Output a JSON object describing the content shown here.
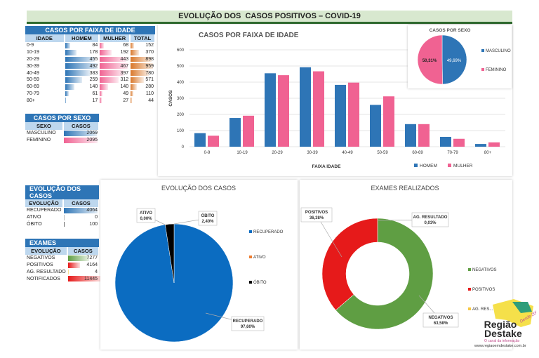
{
  "title": "EVOLUÇÃO DOS  CASOS POSITIVOS – COVID-19",
  "colors": {
    "homem": "#2e75b6",
    "mulher": "#f06292",
    "total": "#d9782b",
    "header": "#2e75b6",
    "subheader": "#bdd7ee",
    "recuperado": "#0b6cc1",
    "ativo": "#ed7d31",
    "obito": "#000000",
    "negativos": "#5f9e43",
    "positivos": "#e61a1a",
    "ag_resultado": "#f7c843",
    "notificados": "#e61a1a"
  },
  "faixa_table": {
    "title": "CASOS POR FAIXA DE IDADE",
    "headers": [
      "IDADE",
      "HOMEM",
      "MULHER",
      "TOTAL"
    ],
    "rows": [
      [
        "0-9",
        84,
        68,
        152
      ],
      [
        "10-19",
        178,
        192,
        370
      ],
      [
        "20-29",
        455,
        443,
        898
      ],
      [
        "30-39",
        492,
        467,
        959
      ],
      [
        "40-49",
        383,
        397,
        780
      ],
      [
        "50-59",
        259,
        312,
        571
      ],
      [
        "60-69",
        140,
        140,
        280
      ],
      [
        "70-79",
        61,
        49,
        110
      ],
      [
        "80+",
        17,
        27,
        44
      ]
    ]
  },
  "sexo_table": {
    "title": "CASOS POR SEXO",
    "headers": [
      "SEXO",
      "CASOS"
    ],
    "rows": [
      [
        "MASCULINO",
        2069
      ],
      [
        "FEMININO",
        2095
      ]
    ]
  },
  "evolucao_table": {
    "title": "EVOLUÇÃO DOS CASOS",
    "headers": [
      "EVOLUÇÃO",
      "CASOS"
    ],
    "rows": [
      [
        "RECUPERADO",
        4064
      ],
      [
        "ATIVO",
        0
      ],
      [
        "ÓBITO",
        100
      ]
    ]
  },
  "exames_table": {
    "title": "EXAMES",
    "headers": [
      "EVOLUÇÃO",
      "CASOS"
    ],
    "rows": [
      [
        "NEGATIVOS",
        7277
      ],
      [
        "POSITIVOS",
        4164
      ],
      [
        "AG. RESULTADO",
        4
      ],
      [
        "NOTIFICADOS",
        11445
      ]
    ]
  },
  "chart_data": [
    {
      "type": "bar",
      "title": "CASOS POR FAIXA DE IDADE",
      "xlabel": "FAIXA IDADE",
      "ylabel": "CASOS",
      "ylim": [
        0,
        600
      ],
      "yticks": [
        0,
        100,
        200,
        300,
        400,
        500,
        600
      ],
      "grid": true,
      "legend": "bottom-right",
      "categories": [
        "0-9",
        "10-19",
        "20-29",
        "30-39",
        "40-49",
        "50-59",
        "60-69",
        "70-79",
        "80+"
      ],
      "series": [
        {
          "name": "HOMEM",
          "values": [
            84,
            178,
            455,
            492,
            383,
            259,
            140,
            61,
            17
          ]
        },
        {
          "name": "MULHER",
          "values": [
            68,
            192,
            443,
            467,
            397,
            312,
            140,
            49,
            27
          ]
        }
      ]
    },
    {
      "type": "pie",
      "title": "CASOS POR SEXO",
      "legend": "right",
      "slices": [
        {
          "name": "MASCULINO",
          "value": 49.69,
          "label": "49,69%"
        },
        {
          "name": "FEMININO",
          "value": 50.31,
          "label": "50,31%"
        }
      ]
    },
    {
      "type": "pie",
      "title": "EVOLUÇÃO DOS CASOS",
      "legend": "right",
      "slices": [
        {
          "name": "RECUPERADO",
          "value": 97.6,
          "label": "97,60%"
        },
        {
          "name": "ATIVO",
          "value": 0.0,
          "label": "0,00%"
        },
        {
          "name": "ÓBITO",
          "value": 2.4,
          "label": "2,40%"
        }
      ]
    },
    {
      "type": "donut",
      "title": "EXAMES REALIZADOS",
      "legend": "right",
      "slices": [
        {
          "name": "NEGATIVOS",
          "value": 63.58,
          "label": "63,58%"
        },
        {
          "name": "AG. RESULTADO",
          "legend": "AG. RES...",
          "value": 0.03,
          "label": "0,03%"
        },
        {
          "name": "POSITIVOS",
          "value": 36.38,
          "label": "36,38%"
        }
      ]
    }
  ],
  "logo": {
    "name": "Região Destake",
    "tagline": "O canal da informação",
    "url": "www.regiaoemdestake.com.br",
    "badge": "Desde 2005"
  }
}
